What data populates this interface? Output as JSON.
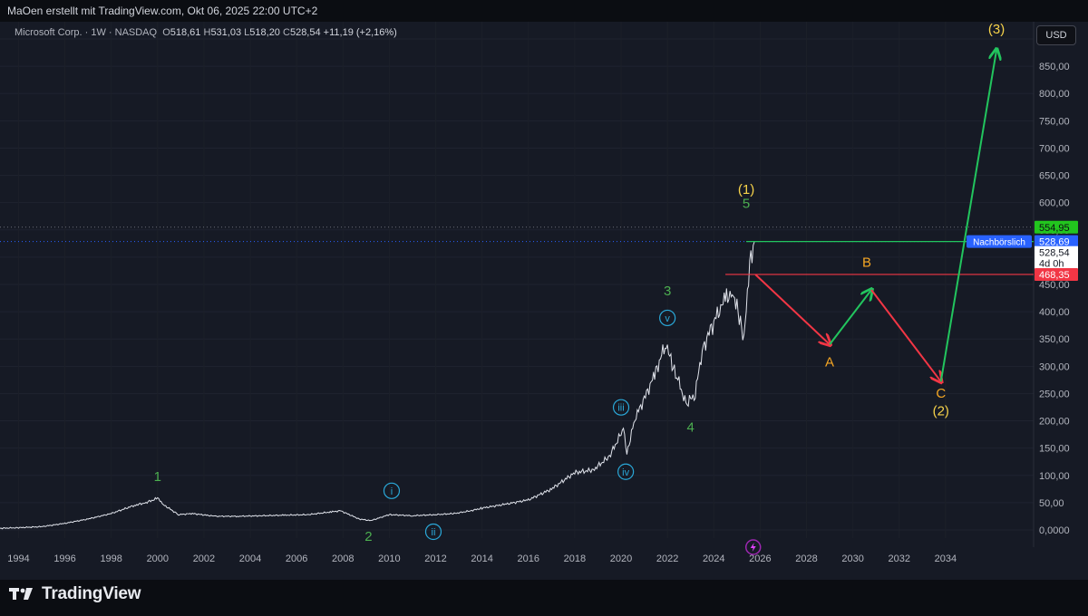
{
  "header": {
    "title": "MaOen erstellt mit TradingView.com, Okt 06, 2025 22:00 UTC+2"
  },
  "legend": {
    "symbol": "Microsoft Corp. · 1W · NASDAQ",
    "open_label": "O",
    "open": "518,61",
    "high_label": "H",
    "high": "531,03",
    "low_label": "L",
    "low": "518,20",
    "close_label": "C",
    "close": "528,54",
    "change": "+11,19 (+2,16%)"
  },
  "currency": "USD",
  "brand": "TradingView",
  "colors": {
    "background": "#161a25",
    "price_line": "#e0e3eb",
    "green": "#22c55e",
    "red": "#f23645",
    "orange": "#f5a623",
    "yellow": "#f7d34a",
    "cyan": "#2aa8d8",
    "wave_green": "#4caf50",
    "blue_label": "#2962ff"
  },
  "chart_data": {
    "type": "line",
    "ylim": [
      -15,
      915
    ],
    "xlim": [
      1993.2,
      2037.8
    ],
    "yticks": [
      "900,00",
      "850,00",
      "800,00",
      "750,00",
      "700,00",
      "650,00",
      "600,00",
      "550,00",
      "500,00",
      "450,00",
      "400,00",
      "350,00",
      "300,00",
      "250,00",
      "200,00",
      "150,00",
      "100,00",
      "50,00",
      "0,0000"
    ],
    "ytick_values": [
      900,
      850,
      800,
      750,
      700,
      650,
      600,
      550,
      500,
      450,
      400,
      350,
      300,
      250,
      200,
      150,
      100,
      50,
      0
    ],
    "xticks": [
      "1994",
      "1996",
      "1998",
      "2000",
      "2002",
      "2004",
      "2006",
      "2008",
      "2010",
      "2012",
      "2014",
      "2016",
      "2018",
      "2020",
      "2022",
      "2024",
      "2026",
      "2028",
      "2030",
      "2032",
      "2034"
    ],
    "series": [
      {
        "x": [
          1993.2,
          1994,
          1995,
          1996,
          1997,
          1998,
          1999,
          1999.5,
          2000,
          2000.3,
          2000.9,
          2001.5,
          2002.5,
          2003.5,
          2004.5,
          2005.5,
          2006.5,
          2007.5,
          2007.9,
          2008.7,
          2009.2,
          2010,
          2011,
          2012,
          2012.8,
          2013.5,
          2014,
          2015,
          2016,
          2017,
          2018,
          2018.8,
          2019.5,
          2020.1,
          2020.25,
          2020.6,
          2021,
          2021.5,
          2021.95,
          2022.2,
          2022.5,
          2022.8,
          2023.2,
          2023.5,
          2023.9,
          2024.3,
          2024.5,
          2024.8,
          2025.05,
          2025.3,
          2025.55,
          2025.75
        ],
        "values": [
          3,
          4,
          6,
          12,
          20,
          30,
          45,
          50,
          58,
          45,
          28,
          30,
          25,
          25,
          26,
          27,
          28,
          33,
          35,
          20,
          17,
          28,
          26,
          28,
          30,
          35,
          40,
          47,
          55,
          75,
          105,
          110,
          135,
          185,
          140,
          205,
          240,
          290,
          345,
          300,
          270,
          230,
          250,
          330,
          370,
          410,
          420,
          440,
          400,
          345,
          495,
          528
        ]
      }
    ],
    "price_lines": [
      {
        "label": "554,95",
        "value": 554.95,
        "color": "green"
      },
      {
        "label": "528,69",
        "value": 528.69,
        "color": "blue",
        "tag": "Nachbörslich"
      },
      {
        "label": "528,54",
        "sub": "4d 0h",
        "value": 528.54,
        "color": "white"
      },
      {
        "label": "468,35",
        "value": 468.35,
        "color": "red"
      }
    ],
    "projection_path": [
      {
        "x": 2025.8,
        "y": 468,
        "color": "red"
      },
      {
        "x": 2029.0,
        "y": 340,
        "color": "green"
      },
      {
        "x": 2030.8,
        "y": 440,
        "color": "red"
      },
      {
        "x": 2033.8,
        "y": 272,
        "color": "green"
      },
      {
        "x": 2036.2,
        "y": 880
      }
    ],
    "wave_labels": [
      {
        "text": "1",
        "x": 2000.0,
        "y": 90,
        "kind": "green"
      },
      {
        "text": "2",
        "x": 2009.1,
        "y": -20,
        "kind": "green"
      },
      {
        "text": "3",
        "x": 2022.0,
        "y": 430,
        "kind": "green"
      },
      {
        "text": "4",
        "x": 2023.0,
        "y": 180,
        "kind": "green"
      },
      {
        "text": "5",
        "x": 2025.4,
        "y": 590,
        "kind": "green"
      },
      {
        "text": "i",
        "x": 2010.1,
        "y": 65,
        "kind": "circle"
      },
      {
        "text": "ii",
        "x": 2011.9,
        "y": -10,
        "kind": "circle"
      },
      {
        "text": "iii",
        "x": 2020.0,
        "y": 218,
        "kind": "circle"
      },
      {
        "text": "iv",
        "x": 2020.2,
        "y": 100,
        "kind": "circle"
      },
      {
        "text": "v",
        "x": 2022.0,
        "y": 382,
        "kind": "circle"
      },
      {
        "text": "(1)",
        "x": 2025.4,
        "y": 616,
        "kind": "yellow"
      },
      {
        "text": "A",
        "x": 2029.0,
        "y": 300,
        "kind": "orange"
      },
      {
        "text": "B",
        "x": 2030.6,
        "y": 482,
        "kind": "orange"
      },
      {
        "text": "C",
        "x": 2033.8,
        "y": 242,
        "kind": "orange"
      },
      {
        "text": "(2)",
        "x": 2033.8,
        "y": 210,
        "kind": "yellow"
      },
      {
        "text": "(3)",
        "x": 2036.2,
        "y": 910,
        "kind": "yellow"
      }
    ]
  }
}
